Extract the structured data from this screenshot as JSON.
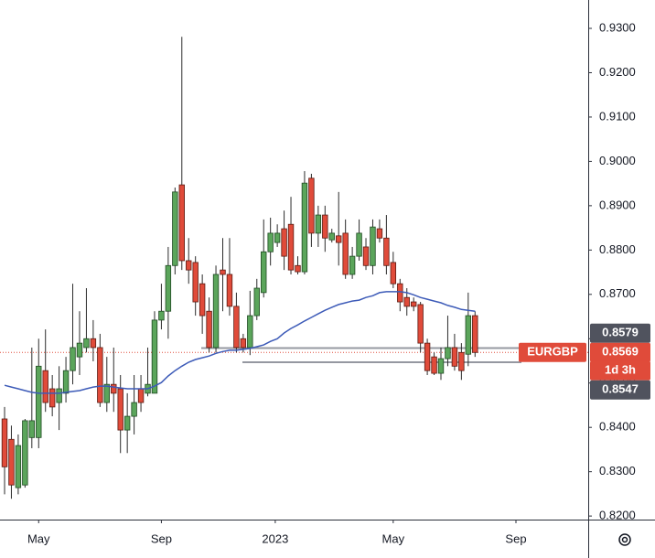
{
  "chart_data": {
    "type": "candlestick",
    "open": [
      0.8419,
      0.8373,
      0.8264,
      0.827,
      0.8377,
      0.8377,
      0.8528,
      0.8487,
      0.8456,
      0.8477,
      0.8528,
      0.8559,
      0.858,
      0.86,
      0.858,
      0.8456,
      0.8497,
      0.8487,
      0.8394,
      0.8425,
      0.8487,
      0.8477,
      0.8477,
      0.8642,
      0.8662,
      0.8765,
      0.8947,
      0.8776,
      0.8772,
      0.8724,
      0.8662,
      0.858,
      0.8755,
      0.8745,
      0.8673,
      0.86,
      0.858,
      0.8652,
      0.8704,
      0.8796,
      0.8817,
      0.8848,
      0.8858,
      0.8765,
      0.8751,
      0.8962,
      0.8838,
      0.8879,
      0.8823,
      0.8832,
      0.8838,
      0.8745,
      0.8786,
      0.8807,
      0.8765,
      0.8848,
      0.8827,
      0.8772,
      0.8724,
      0.8693,
      0.8683,
      0.8677,
      0.859,
      0.8559,
      0.8522,
      0.8555,
      0.858,
      0.8569,
      0.8565,
      0.8652
    ],
    "high": [
      0.8446,
      0.8404,
      0.8384,
      0.8419,
      0.858,
      0.86,
      0.8621,
      0.8518,
      0.8538,
      0.8559,
      0.8724,
      0.8662,
      0.8714,
      0.8642,
      0.8611,
      0.8559,
      0.858,
      0.8518,
      0.8477,
      0.8518,
      0.8518,
      0.858,
      0.8662,
      0.8724,
      0.8807,
      0.8941,
      0.9281,
      0.8827,
      0.8786,
      0.8745,
      0.8693,
      0.8765,
      0.8827,
      0.8827,
      0.8704,
      0.8611,
      0.8708,
      0.8735,
      0.8869,
      0.8873,
      0.8858,
      0.8889,
      0.892,
      0.8786,
      0.8978,
      0.8972,
      0.89,
      0.89,
      0.8848,
      0.8931,
      0.8869,
      0.8807,
      0.8869,
      0.8827,
      0.8869,
      0.8869,
      0.8879,
      0.8796,
      0.8735,
      0.8714,
      0.8693,
      0.8683,
      0.86,
      0.8569,
      0.858,
      0.8652,
      0.8611,
      0.859,
      0.8704,
      0.8662
    ],
    "low": [
      0.8249,
      0.8239,
      0.8249,
      0.8264,
      0.8353,
      0.8353,
      0.8435,
      0.8425,
      0.8394,
      0.8456,
      0.8497,
      0.8518,
      0.8569,
      0.8549,
      0.8446,
      0.8435,
      0.8435,
      0.8342,
      0.8342,
      0.8384,
      0.8435,
      0.847,
      0.8477,
      0.8621,
      0.86,
      0.8745,
      0.8755,
      0.8724,
      0.8652,
      0.8611,
      0.8569,
      0.8569,
      0.8662,
      0.8652,
      0.8569,
      0.8569,
      0.8563,
      0.8642,
      0.8693,
      0.8765,
      0.8807,
      0.8755,
      0.8745,
      0.8745,
      0.8745,
      0.8807,
      0.8807,
      0.8796,
      0.8817,
      0.8765,
      0.8735,
      0.8735,
      0.8776,
      0.8755,
      0.8745,
      0.8817,
      0.8745,
      0.8714,
      0.8662,
      0.8652,
      0.8662,
      0.8569,
      0.8518,
      0.8518,
      0.8507,
      0.8538,
      0.8528,
      0.8507,
      0.8538,
      0.8559
    ],
    "close": [
      0.8311,
      0.827,
      0.8359,
      0.8415,
      0.8415,
      0.8538,
      0.8456,
      0.8446,
      0.8487,
      0.8528,
      0.858,
      0.859,
      0.86,
      0.858,
      0.8456,
      0.8497,
      0.8477,
      0.8394,
      0.8425,
      0.8456,
      0.8456,
      0.8497,
      0.8642,
      0.8662,
      0.8765,
      0.8931,
      0.8776,
      0.8755,
      0.8683,
      0.8652,
      0.858,
      0.8745,
      0.8745,
      0.8673,
      0.858,
      0.858,
      0.8652,
      0.8714,
      0.8796,
      0.8838,
      0.8838,
      0.8786,
      0.8755,
      0.8751,
      0.8951,
      0.8838,
      0.8879,
      0.8827,
      0.8838,
      0.8817,
      0.8745,
      0.8786,
      0.8838,
      0.8765,
      0.8852,
      0.8827,
      0.8765,
      0.8724,
      0.8683,
      0.8673,
      0.8673,
      0.859,
      0.8528,
      0.8522,
      0.8555,
      0.858,
      0.8538,
      0.8528,
      0.8652,
      0.8569
    ],
    "ma": {
      "color": "#3d5bb8",
      "values": [
        0.8495,
        0.8491,
        0.8487,
        0.8483,
        0.8479,
        0.8477,
        0.8477,
        0.8477,
        0.8477,
        0.8479,
        0.8481,
        0.8483,
        0.8487,
        0.8491,
        0.8493,
        0.8493,
        0.8491,
        0.8489,
        0.8487,
        0.8487,
        0.8487,
        0.8487,
        0.8493,
        0.8501,
        0.8516,
        0.8528,
        0.8538,
        0.8547,
        0.8553,
        0.8557,
        0.8561,
        0.8567,
        0.8571,
        0.8574,
        0.8574,
        0.8576,
        0.8578,
        0.8582,
        0.8586,
        0.8594,
        0.86,
        0.8613,
        0.8623,
        0.8631,
        0.864,
        0.8648,
        0.8656,
        0.8664,
        0.8671,
        0.8677,
        0.8681,
        0.8685,
        0.8687,
        0.8693,
        0.8697,
        0.8704,
        0.8706,
        0.8706,
        0.8706,
        0.8704,
        0.8699,
        0.8693,
        0.8689,
        0.8685,
        0.8681,
        0.8675,
        0.8671,
        0.8666,
        0.8664,
        0.8662
      ]
    },
    "up_color": "#5ba55b",
    "down_color": "#e04b3a",
    "ylim": [
      0.8192,
      0.9364
    ],
    "yticks": [
      {
        "value": 0.93,
        "label": "0.9300"
      },
      {
        "value": 0.92,
        "label": "0.9200"
      },
      {
        "value": 0.91,
        "label": "0.9100"
      },
      {
        "value": 0.9,
        "label": "0.9000"
      },
      {
        "value": 0.89,
        "label": "0.8900"
      },
      {
        "value": 0.88,
        "label": "0.8800"
      },
      {
        "value": 0.87,
        "label": "0.8700"
      },
      {
        "value": 0.86,
        "label": "0.8600"
      },
      {
        "value": 0.85,
        "label": "0.8500"
      },
      {
        "value": 0.84,
        "label": "0.8400"
      },
      {
        "value": 0.83,
        "label": "0.8300"
      },
      {
        "value": 0.82,
        "label": "0.8200"
      }
    ],
    "xlim": [
      -0.67,
      85.6
    ],
    "xticks": [
      {
        "value": 5,
        "label": "May"
      },
      {
        "value": 23,
        "label": "Sep"
      },
      {
        "value": 39.7,
        "label": "2023"
      },
      {
        "value": 57,
        "label": "May"
      },
      {
        "value": 75,
        "label": "Sep"
      }
    ],
    "levels": [
      0.8579,
      0.8547
    ],
    "symbol": "EURGBP",
    "last_price": 0.8569,
    "countdown": "1d 3h"
  }
}
